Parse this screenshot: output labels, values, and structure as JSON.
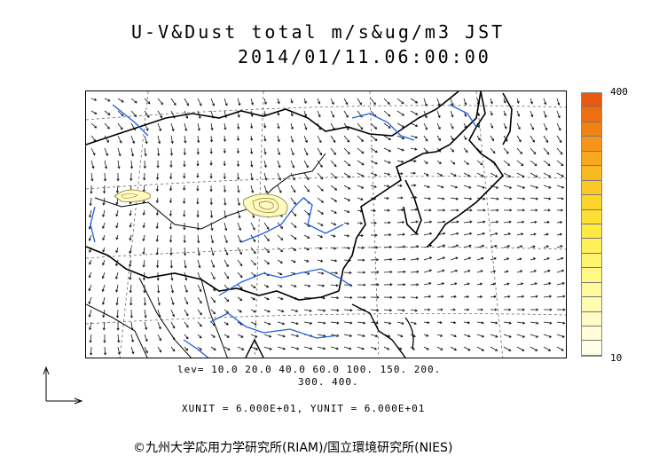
{
  "title": {
    "line1": "U-V&Dust total m/s&ug/m3 JST",
    "line2": "2014/01/11.06:00:00"
  },
  "colorbar": {
    "max_label": "400",
    "min_label": "10",
    "colors": [
      "#e85a0e",
      "#ee6f10",
      "#f38214",
      "#f69518",
      "#f8a81c",
      "#fab820",
      "#fcc824",
      "#fdd52a",
      "#fee035",
      "#ffe944",
      "#fff05a",
      "#fff470",
      "#fff786",
      "#fff99b",
      "#fffbb2",
      "#fffcc6",
      "#fffdd8",
      "#fffee8"
    ]
  },
  "levels": {
    "line1": "lev= 10.0 20.0 40.0 60.0 100. 150. 200.",
    "line2": "300. 400."
  },
  "units": {
    "text": "XUNIT = 6.000E+01, YUNIT = 6.000E+01"
  },
  "copyright": "©九州大学応用力学研究所(RIAM)/国立環境研究所(NIES)",
  "map": {
    "land_color": "#000000",
    "river_color": "#1e5fe0",
    "grid_color": "#666666",
    "dust_fill": "#fffac0",
    "dust_line": "#8a7a30"
  }
}
